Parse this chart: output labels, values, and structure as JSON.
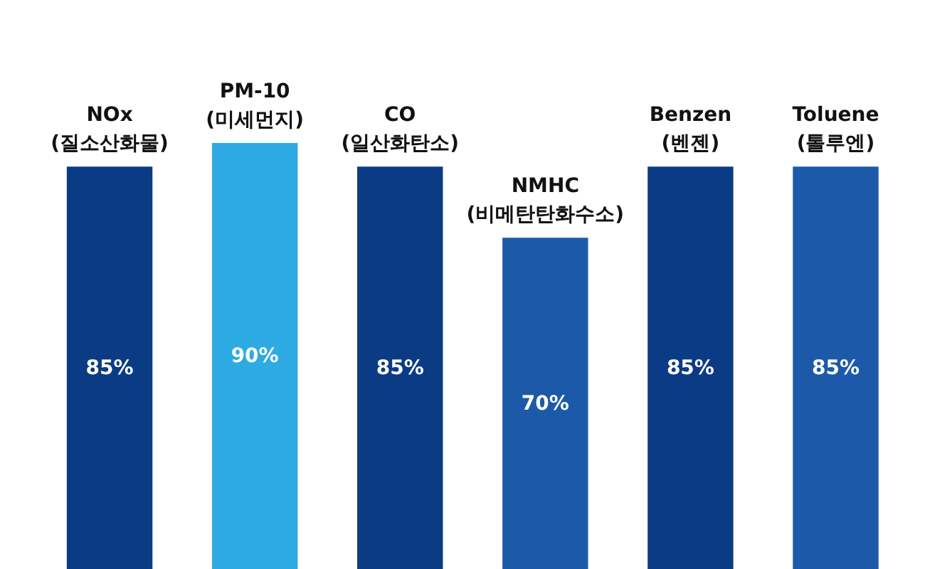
{
  "chart_data": {
    "type": "bar",
    "categories": [
      "NOx\n(질소산화물)",
      "PM-10\n(미세먼지)",
      "CO\n(일산화탄소)",
      "NMHC\n(비메탄탄화수소)",
      "Benzen\n(벤젠)",
      "Toluene\n(톨루엔)"
    ],
    "values": [
      85,
      90,
      85,
      70,
      85,
      85
    ],
    "colors": [
      "#0b3b84",
      "#2eaae3",
      "#0b3b84",
      "#1c5aa9",
      "#0b3b84",
      "#1c5aa9"
    ],
    "value_labels": [
      "85%",
      "90%",
      "85%",
      "70%",
      "85%",
      "85%"
    ]
  }
}
